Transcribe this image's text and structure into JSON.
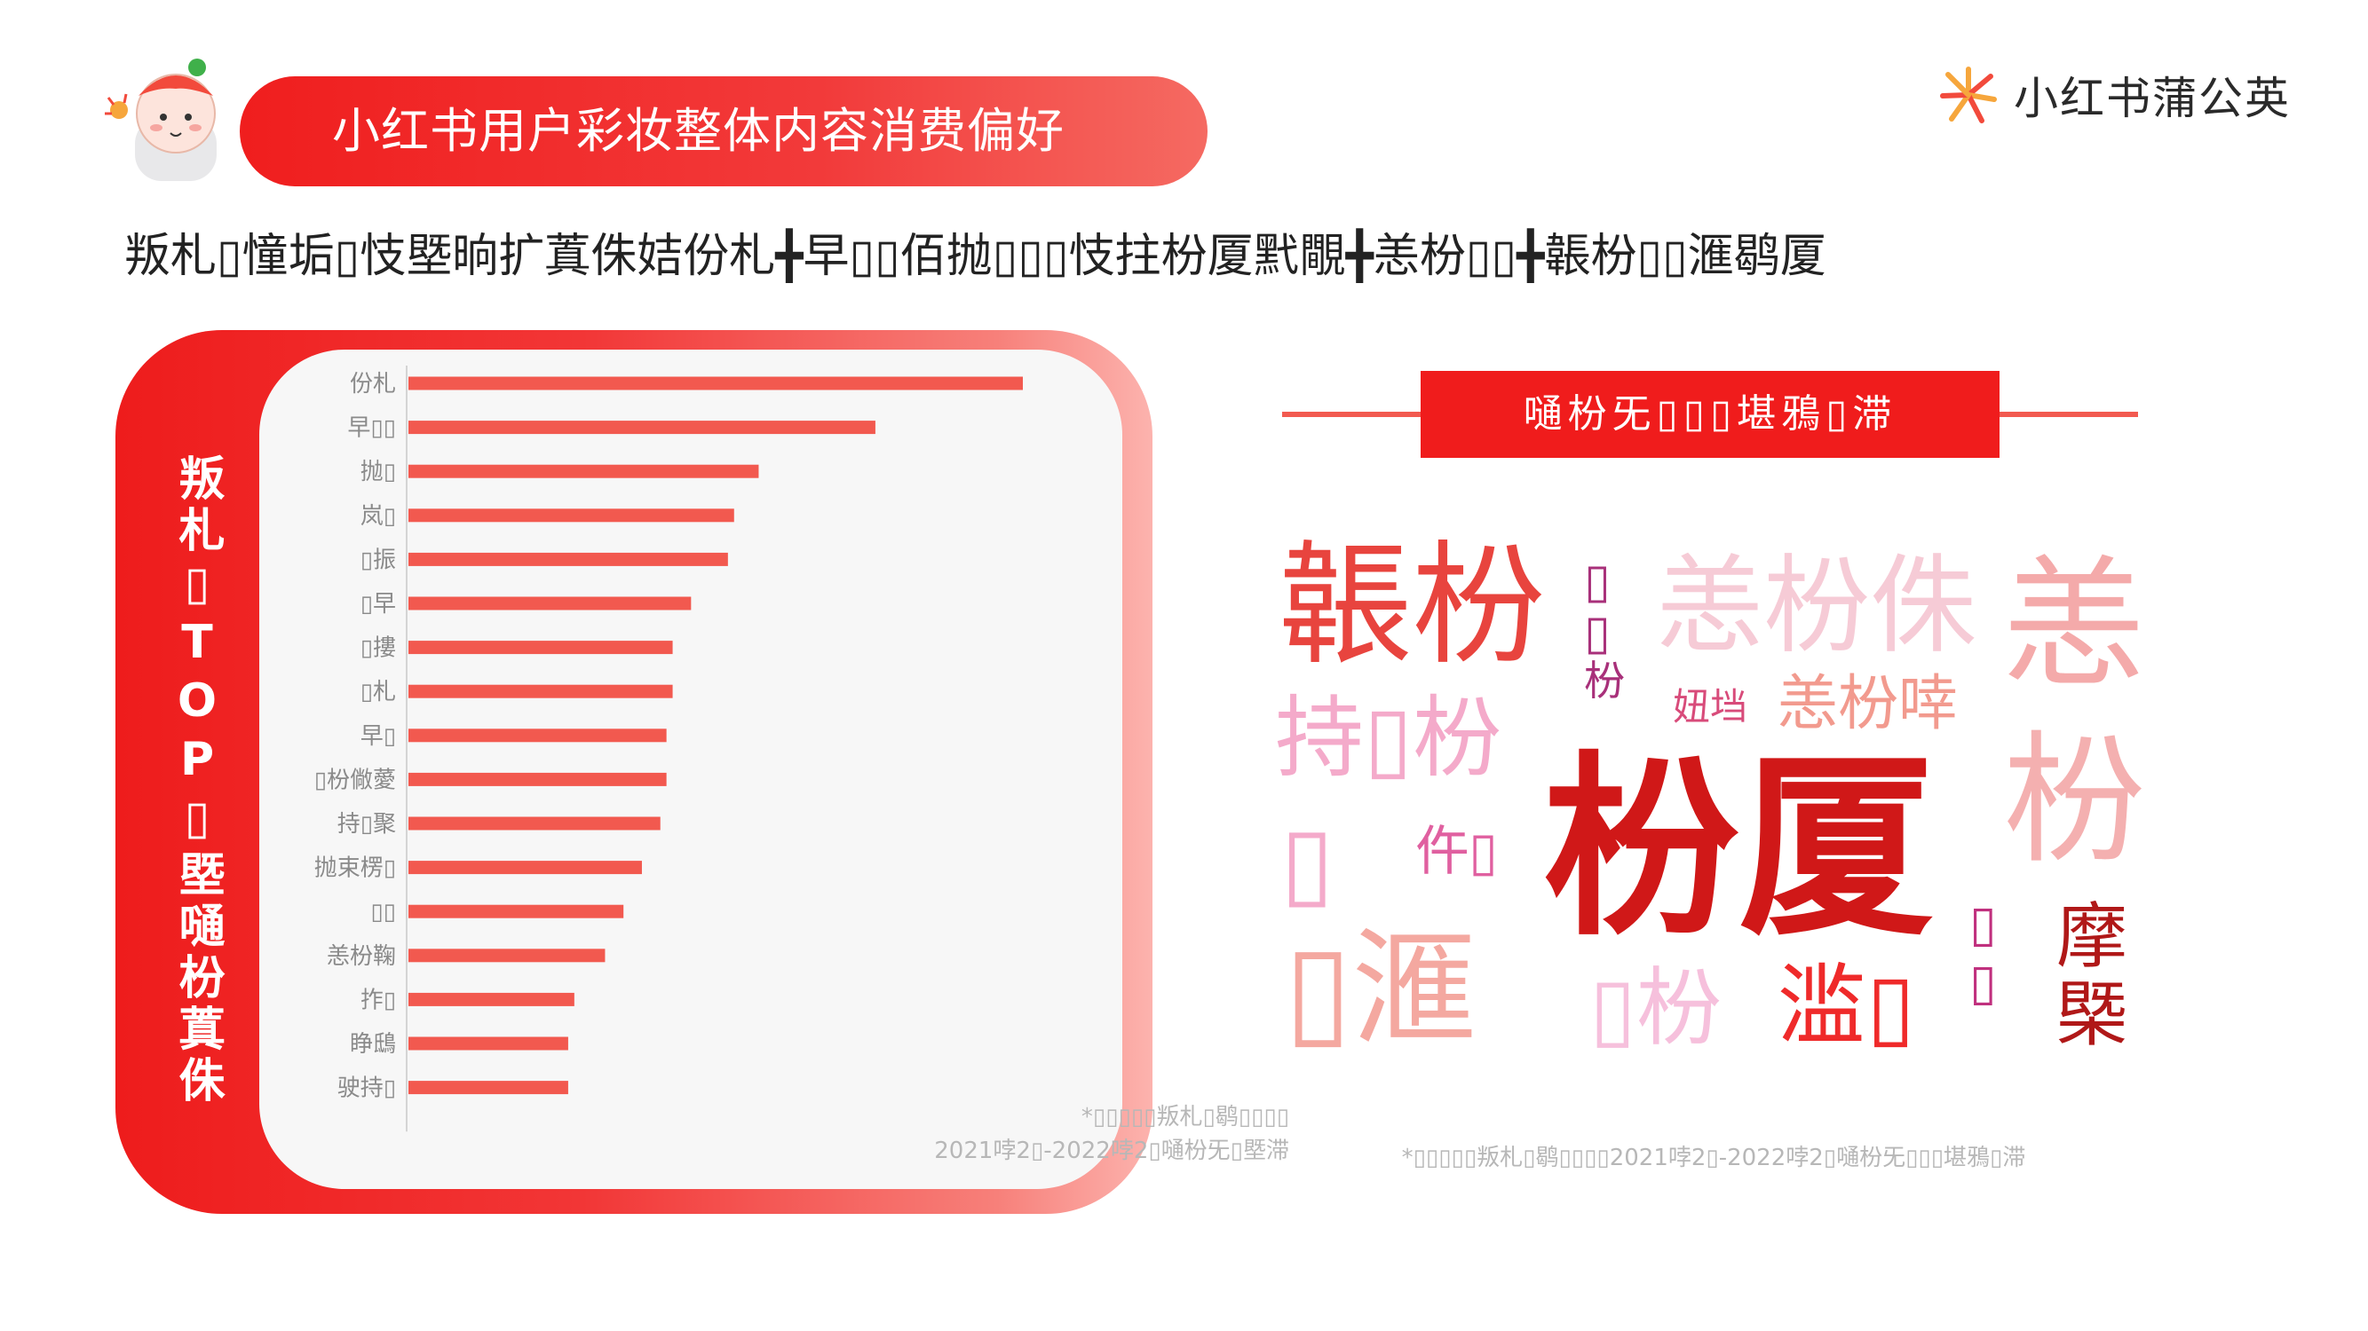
{
  "header": {
    "title": "小红书用户彩妆整体内容消费偏好",
    "brand_name": "小红书蒲公英",
    "mascot_icon": "mascot-icon",
    "brand_icon": "dandelion-logo-icon"
  },
  "subtitle": "叛札▯憧垢▯忮塈晌扩蒖侏姞份札╋早▯▯佰抛▯▯▯忮拄枌厦黓覸╋恙枌▯▯╋韔枌▯▯滙鹖厦",
  "chart_panel": {
    "side_label": "叛札▯TOP▯塈嗵枌蒖侏",
    "note_line1": "*▯▯▯▯▯叛札▯鹖▯▯▯▯",
    "note_line2": "2021哱2▯-2022哱2▯嗵枌旡▯塈滞"
  },
  "colors": {
    "accent": "#f01e1e",
    "bar": "#f2594f",
    "note": "#b7b7b7"
  },
  "chart_data": {
    "type": "bar",
    "orientation": "horizontal",
    "categories": [
      "份札",
      "早▯▯",
      "抛▯",
      "岚▯",
      "▯振",
      "▯早",
      "▯摟",
      "▯札",
      "早▯",
      "▯枌僘薆",
      "持▯聚",
      "抛束楞▯",
      "▯▯",
      "恙枌鞠",
      "拃▯",
      "睁鴟",
      "驶持▯"
    ],
    "values": [
      100,
      76,
      57,
      53,
      52,
      46,
      43,
      43,
      42,
      42,
      41,
      38,
      35,
      32,
      27,
      26,
      26
    ],
    "xlim": [
      0,
      100
    ],
    "grid": false,
    "title": "",
    "xlabel": "",
    "ylabel": ""
  },
  "word_cloud": {
    "section_title": "嗵枌旡▯▯▯堪鴉▯滞",
    "note": "*▯▯▯▯▯叛札▯鹖▯▯▯▯2021哱2▯-2022哱2▯嗵枌旡▯▯▯堪鴉▯滞",
    "words": [
      {
        "text": "韔枌",
        "color": "#e8443e"
      },
      {
        "text": "▯",
        "color": "#a8307a"
      },
      {
        "text": "▯",
        "color": "#a8307a"
      },
      {
        "text": "枌",
        "color": "#a8307a"
      },
      {
        "text": "恙枌侏",
        "color": "#f6cbd6"
      },
      {
        "text": "恙",
        "color": "#f4aaaa"
      },
      {
        "text": "持▯枌",
        "color": "#f4aaca"
      },
      {
        "text": "妞垱",
        "color": "#d84b7a"
      },
      {
        "text": "恙枌啈",
        "color": "#f29a8e"
      },
      {
        "text": "枌厦",
        "color": "#d01818"
      },
      {
        "text": "枌",
        "color": "#f4b0b0"
      },
      {
        "text": "▯",
        "color": "#f4aaca"
      },
      {
        "text": "仵▯",
        "color": "#e060a0"
      },
      {
        "text": "▯滙",
        "color": "#f4a8a0"
      },
      {
        "text": "▯枌",
        "color": "#f6c0dc"
      },
      {
        "text": "滥▯",
        "color": "#ef2a2a"
      },
      {
        "text": "▯",
        "color": "#c0307e"
      },
      {
        "text": "▯",
        "color": "#c0307e"
      },
      {
        "text": "摩",
        "color": "#b01818"
      },
      {
        "text": "槩",
        "color": "#b01818"
      }
    ]
  }
}
